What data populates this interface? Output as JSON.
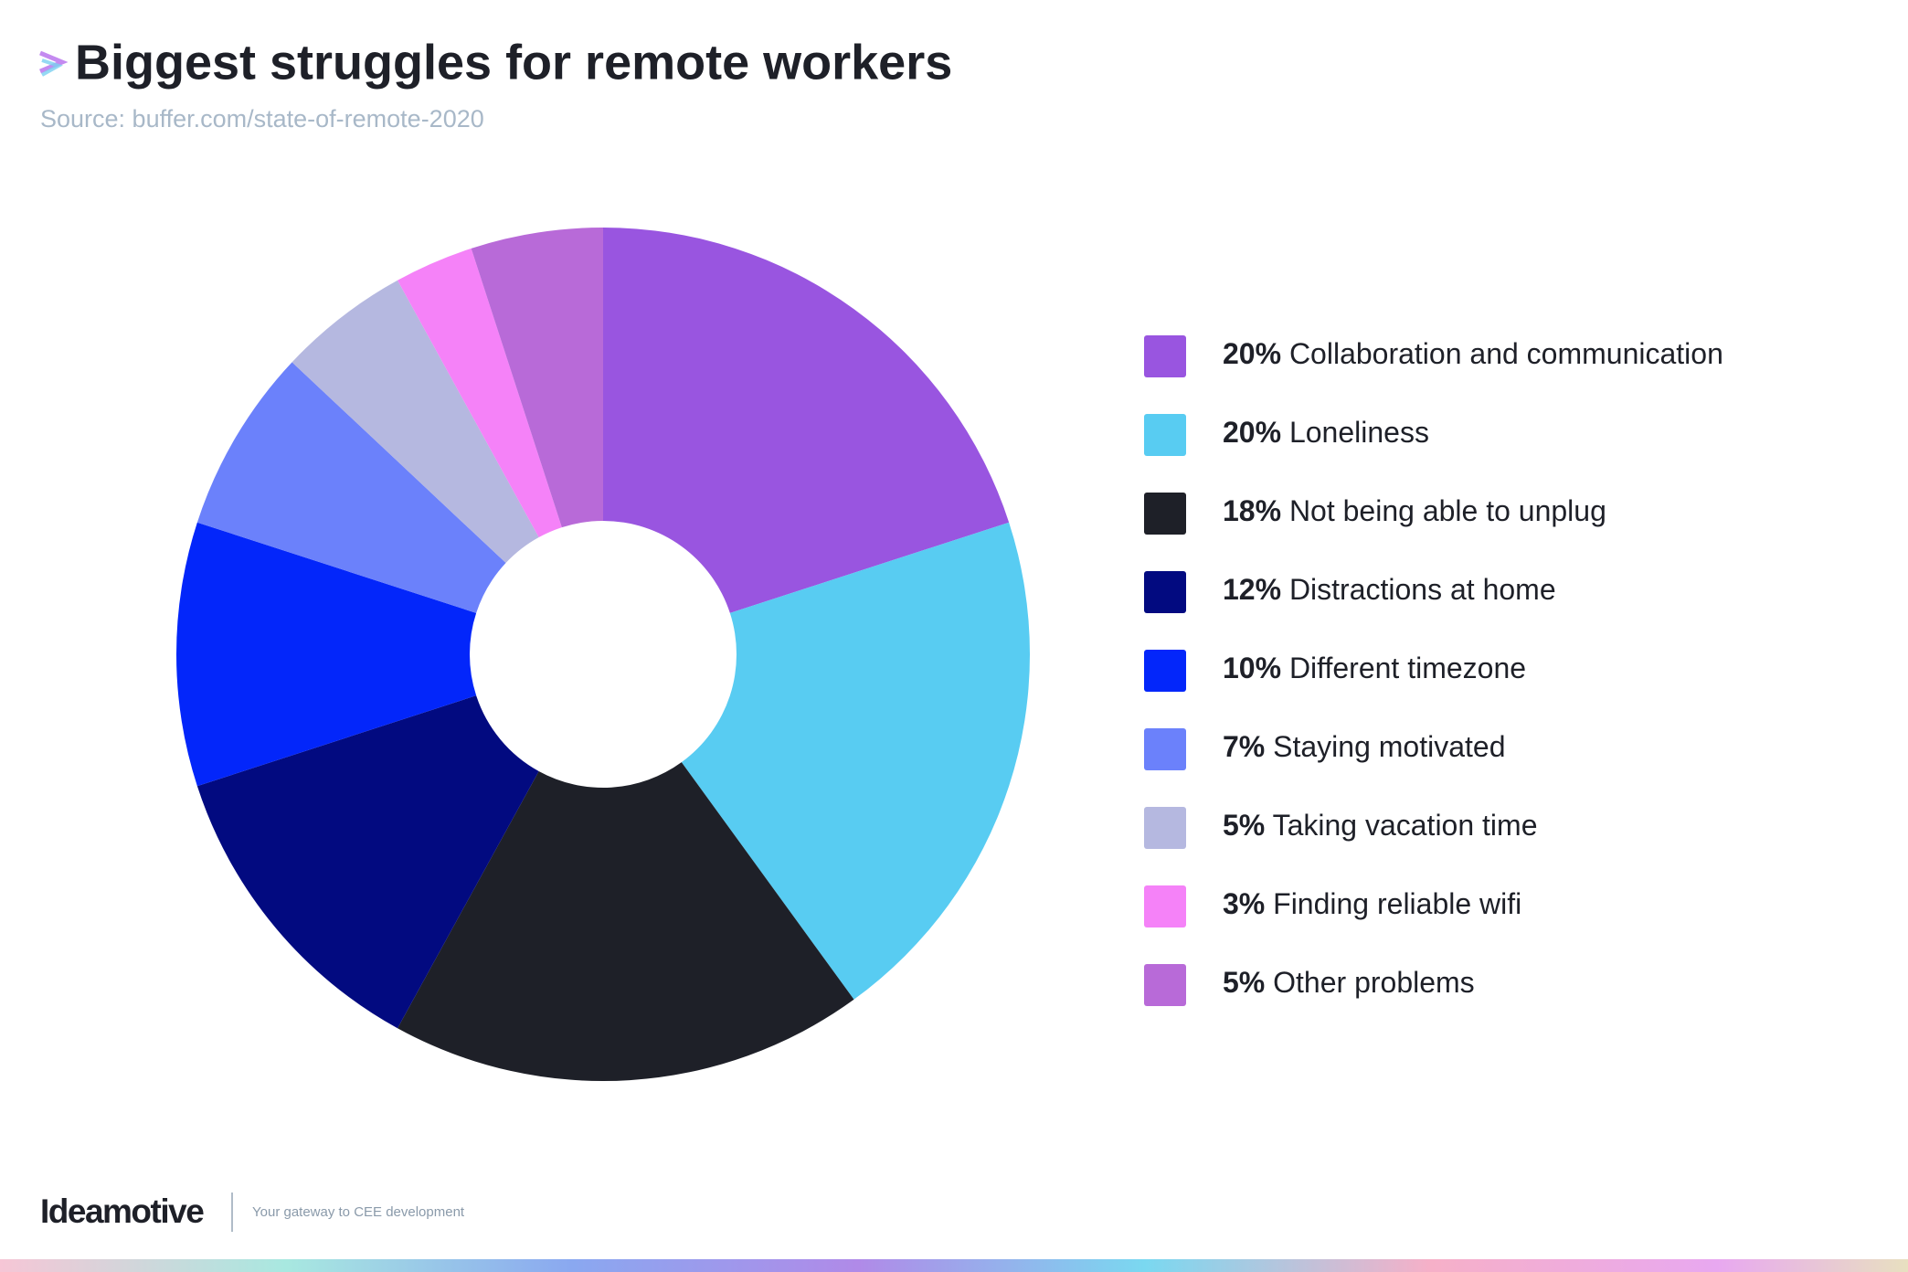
{
  "chart_data": {
    "type": "donut",
    "title": "Biggest struggles for remote workers",
    "subtitle": "Source: buffer.com/state-of-remote-2020",
    "categories": [
      "Collaboration and communication",
      "Loneliness",
      "Not being able to unplug",
      "Distractions at home",
      "Different timezone",
      "Staying motivated",
      "Taking vacation time",
      "Finding reliable wifi",
      "Other problems"
    ],
    "values": [
      20,
      20,
      18,
      12,
      10,
      7,
      5,
      3,
      5
    ],
    "value_labels": [
      "20%",
      "20%",
      "18%",
      "12%",
      "10%",
      "7%",
      "5%",
      "3%",
      "5%"
    ],
    "colors": [
      "#9955e0",
      "#58ccf2",
      "#1e2028",
      "#020a80",
      "#0326fa",
      "#6b81fb",
      "#b5b8e0",
      "#f582f8",
      "#b86ad8"
    ],
    "legend": "right"
  },
  "footer": {
    "brand": "Ideamotive",
    "tagline": "Your gateway to CEE development"
  }
}
